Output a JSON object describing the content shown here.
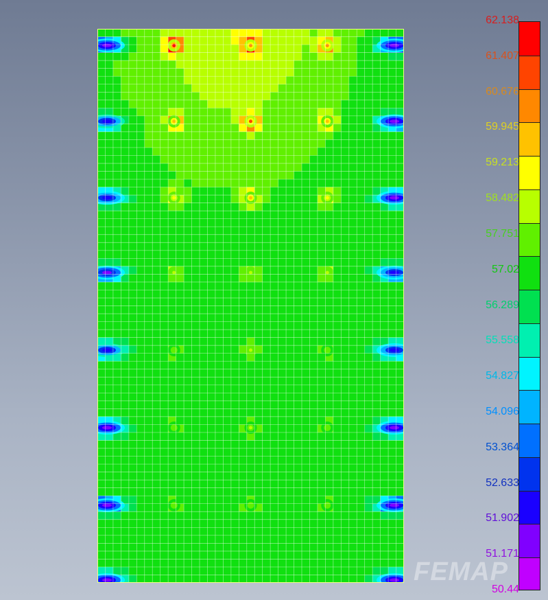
{
  "app": {
    "watermark": "FEMAP"
  },
  "chart_data": {
    "type": "heatmap",
    "description_units": "contour legend",
    "legend_values": [
      "62.138",
      "61.407",
      "60.676",
      "59.945",
      "59.213",
      "58.482",
      "57.751",
      "57.02",
      "56.289",
      "55.558",
      "54.827",
      "54.096",
      "53.364",
      "52.633",
      "51.902",
      "51.171",
      "50.44"
    ],
    "legend_colors": [
      "#ff0000",
      "#ff4400",
      "#ff8800",
      "#ffc200",
      "#ffff00",
      "#b8ff00",
      "#60f000",
      "#10e010",
      "#00e050",
      "#00f0b0",
      "#00f4ff",
      "#00b4ff",
      "#0070ff",
      "#0033ee",
      "#1a00ff",
      "#8000ff",
      "#c000ff"
    ],
    "legend_label_colors": [
      "#d81e1e",
      "#d8521e",
      "#d88a1e",
      "#e0d020",
      "#c8e020",
      "#a0e020",
      "#48d020",
      "#10c810",
      "#00d06c",
      "#00e0b8",
      "#00b8e8",
      "#0090ff",
      "#0050d0",
      "#1030c0",
      "#6010d8",
      "#9010e0",
      "#d000e0"
    ],
    "range": [
      50.44,
      62.138
    ],
    "mesh": {
      "cols": 39,
      "rows": 70
    },
    "base_value": 56.9,
    "hot_spots": [
      {
        "col": 0.25,
        "row": 0.03,
        "value": 61.6
      },
      {
        "col": 0.5,
        "row": 0.03,
        "value": 60.5
      },
      {
        "col": 0.75,
        "row": 0.03,
        "value": 60.3
      },
      {
        "col": 0.25,
        "row": 0.167,
        "value": 60.0
      },
      {
        "col": 0.5,
        "row": 0.167,
        "value": 61.0
      },
      {
        "col": 0.75,
        "row": 0.167,
        "value": 59.9
      },
      {
        "col": 0.25,
        "row": 0.305,
        "value": 59.1
      },
      {
        "col": 0.5,
        "row": 0.305,
        "value": 59.9
      },
      {
        "col": 0.75,
        "row": 0.305,
        "value": 59.1
      },
      {
        "col": 0.25,
        "row": 0.44,
        "value": 58.4
      },
      {
        "col": 0.5,
        "row": 0.44,
        "value": 58.6
      },
      {
        "col": 0.75,
        "row": 0.44,
        "value": 58.3
      },
      {
        "col": 0.25,
        "row": 0.58,
        "value": 58.0
      },
      {
        "col": 0.5,
        "row": 0.58,
        "value": 58.2
      },
      {
        "col": 0.75,
        "row": 0.58,
        "value": 58.0
      },
      {
        "col": 0.25,
        "row": 0.72,
        "value": 57.9
      },
      {
        "col": 0.5,
        "row": 0.72,
        "value": 58.1
      },
      {
        "col": 0.75,
        "row": 0.72,
        "value": 57.9
      },
      {
        "col": 0.25,
        "row": 0.86,
        "value": 57.9
      },
      {
        "col": 0.5,
        "row": 0.86,
        "value": 58.0
      },
      {
        "col": 0.75,
        "row": 0.86,
        "value": 57.9
      }
    ],
    "cold_spots": [
      {
        "side": "left",
        "row": 0.03,
        "value": 51.2
      },
      {
        "side": "right",
        "row": 0.03,
        "value": 51.2
      },
      {
        "side": "left",
        "row": 0.167,
        "value": 52.3
      },
      {
        "side": "right",
        "row": 0.167,
        "value": 51.4
      },
      {
        "side": "left",
        "row": 0.305,
        "value": 52.0
      },
      {
        "side": "right",
        "row": 0.305,
        "value": 51.6
      },
      {
        "side": "left",
        "row": 0.44,
        "value": 51.8
      },
      {
        "side": "right",
        "row": 0.44,
        "value": 52.0
      },
      {
        "side": "left",
        "row": 0.58,
        "value": 52.4
      },
      {
        "side": "right",
        "row": 0.58,
        "value": 52.2
      },
      {
        "side": "left",
        "row": 0.72,
        "value": 51.4
      },
      {
        "side": "right",
        "row": 0.72,
        "value": 51.4
      },
      {
        "side": "left",
        "row": 0.86,
        "value": 51.2
      },
      {
        "side": "right",
        "row": 0.86,
        "value": 51.2
      },
      {
        "side": "left",
        "row": 0.995,
        "value": 51.2
      },
      {
        "side": "right",
        "row": 0.995,
        "value": 51.6
      }
    ],
    "upper_region_value": 58.3
  }
}
